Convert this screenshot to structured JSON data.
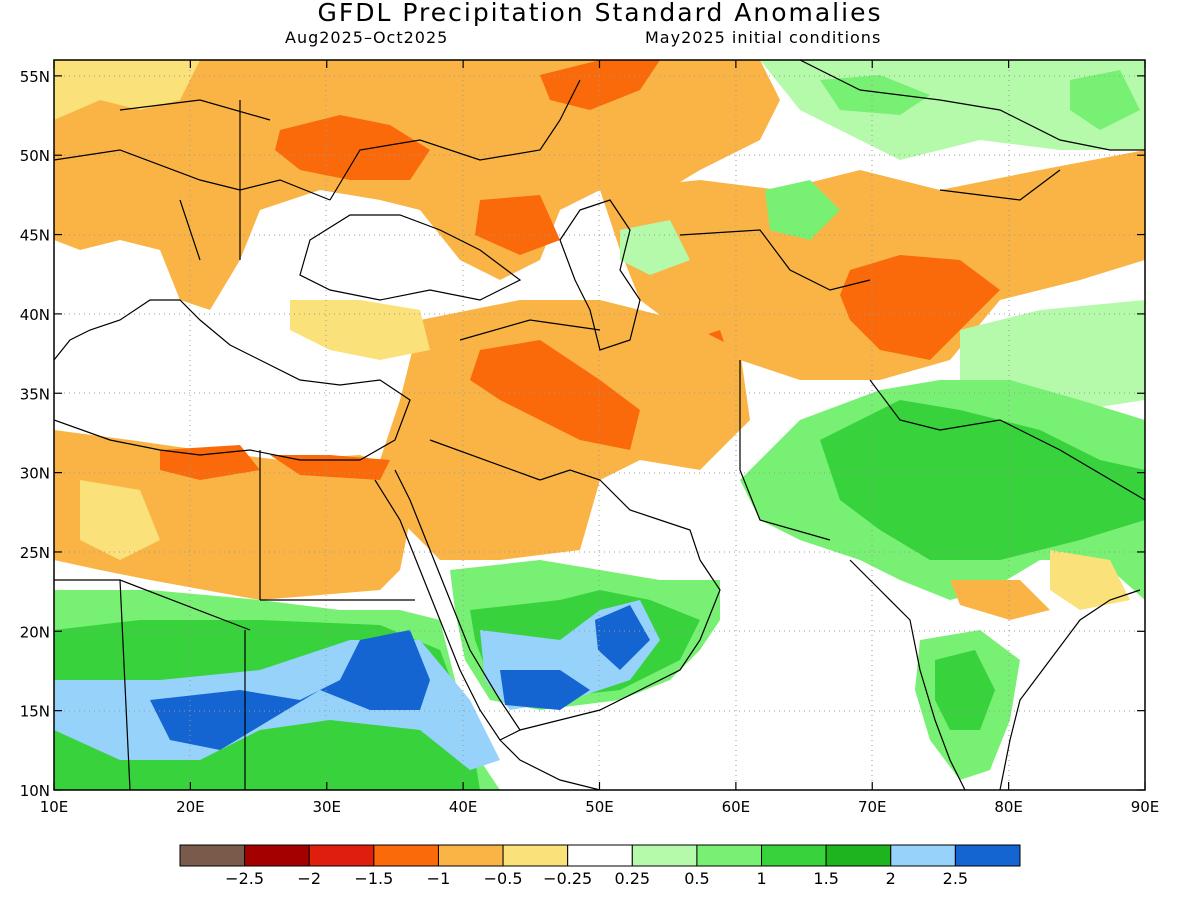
{
  "title": "GFDL Precipitation Standard Anomalies",
  "subtitle_period": "Aug2025–Oct2025",
  "subtitle_init": "May2025 initial conditions",
  "map": {
    "lon_range": [
      10,
      90
    ],
    "lat_range": [
      10,
      56
    ],
    "lon_ticks": [
      "10E",
      "20E",
      "30E",
      "40E",
      "50E",
      "60E",
      "70E",
      "80E",
      "90E"
    ],
    "lat_ticks": [
      "10N",
      "15N",
      "20N",
      "25N",
      "30N",
      "35N",
      "40N",
      "45N",
      "50N",
      "55N"
    ],
    "grid": "dotted"
  },
  "colorbar": {
    "colors": [
      "#7a5a4a",
      "#a50000",
      "#e01e0e",
      "#fa6a0a",
      "#fab446",
      "#fae17a",
      "#ffffff",
      "#b4faaa",
      "#78f073",
      "#37d23c",
      "#1eb41e",
      "#96d2fa",
      "#1464d2"
    ],
    "labels": [
      "−2.5",
      "−2",
      "−1.5",
      "−1",
      "−0.5",
      "−0.25",
      "0.25",
      "0.5",
      "1",
      "1.5",
      "2",
      "2.5"
    ]
  },
  "anomaly_regions": [
    {
      "name": "eastern-europe-dry",
      "level": -1.0
    },
    {
      "name": "ukraine-core-dry",
      "level": -1.5
    },
    {
      "name": "central-asia-dry",
      "level": -1.0
    },
    {
      "name": "tien-shan-core-dry",
      "level": -1.5
    },
    {
      "name": "iraq-iran-dry",
      "level": -1.5
    },
    {
      "name": "north-africa-dry",
      "level": -0.5
    },
    {
      "name": "sahel-wet",
      "level": 1.5
    },
    {
      "name": "sudan-core-wet",
      "level": 2.5
    },
    {
      "name": "yemen-oman-wet",
      "level": 2.5
    },
    {
      "name": "india-pakistan-wet",
      "level": 1.5
    },
    {
      "name": "siberia-wet",
      "level": 0.5
    }
  ]
}
